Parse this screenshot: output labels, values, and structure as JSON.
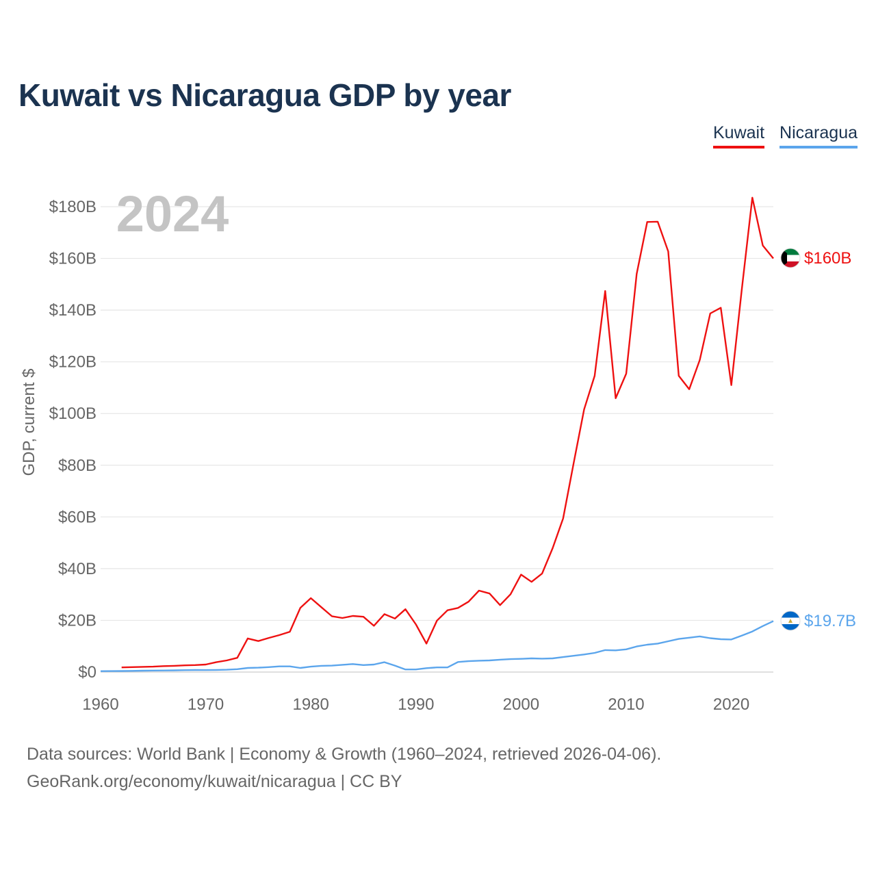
{
  "title": "Kuwait vs Nicaragua GDP by year",
  "legend": [
    "Kuwait",
    "Nicaragua"
  ],
  "source": {
    "line1": "Data sources: World Bank | Economy & Growth (1960–2024, retrieved 2026-04-06).",
    "line2": "GeoRank.org/economy/kuwait/nicaragua | CC BY"
  },
  "chart_data": {
    "type": "line",
    "title": "Kuwait vs Nicaragua GDP by year",
    "year_label": "2024",
    "xlabel": "",
    "ylabel": "GDP, current $",
    "xlim": [
      1960,
      2024
    ],
    "ylim": [
      0,
      180
    ],
    "x_ticks": [
      1960,
      1970,
      1980,
      1990,
      2000,
      2010,
      2020
    ],
    "x_tick_labels": [
      "1960",
      "1970",
      "1980",
      "1990",
      "2000",
      "2010",
      "2020"
    ],
    "y_ticks": [
      0,
      20,
      40,
      60,
      80,
      100,
      120,
      140,
      160,
      180
    ],
    "y_tick_labels": [
      "$0",
      "$20B",
      "$40B",
      "$60B",
      "$80B",
      "$100B",
      "$120B",
      "$140B",
      "$160B",
      "$180B"
    ],
    "grid": true,
    "legend_position": "top-right",
    "series": [
      {
        "name": "Kuwait",
        "color": "#ee1111",
        "end_label": "$160B",
        "flag": "kuwait-flag",
        "points": [
          [
            1962,
            1.8
          ],
          [
            1963,
            1.9
          ],
          [
            1964,
            2.0
          ],
          [
            1965,
            2.1
          ],
          [
            1966,
            2.3
          ],
          [
            1967,
            2.4
          ],
          [
            1968,
            2.6
          ],
          [
            1969,
            2.7
          ],
          [
            1970,
            2.9
          ],
          [
            1971,
            3.8
          ],
          [
            1972,
            4.5
          ],
          [
            1973,
            5.5
          ],
          [
            1974,
            13.0
          ],
          [
            1975,
            12.0
          ],
          [
            1976,
            13.2
          ],
          [
            1977,
            14.3
          ],
          [
            1978,
            15.6
          ],
          [
            1979,
            24.8
          ],
          [
            1980,
            28.6
          ],
          [
            1981,
            25.1
          ],
          [
            1982,
            21.6
          ],
          [
            1983,
            20.9
          ],
          [
            1984,
            21.7
          ],
          [
            1985,
            21.4
          ],
          [
            1986,
            17.9
          ],
          [
            1987,
            22.4
          ],
          [
            1988,
            20.7
          ],
          [
            1989,
            24.3
          ],
          [
            1990,
            18.4
          ],
          [
            1991,
            11.0
          ],
          [
            1992,
            19.9
          ],
          [
            1993,
            23.9
          ],
          [
            1994,
            24.8
          ],
          [
            1995,
            27.2
          ],
          [
            1996,
            31.5
          ],
          [
            1997,
            30.4
          ],
          [
            1998,
            25.9
          ],
          [
            1999,
            30.1
          ],
          [
            2000,
            37.7
          ],
          [
            2001,
            34.9
          ],
          [
            2002,
            38.1
          ],
          [
            2003,
            47.9
          ],
          [
            2004,
            59.4
          ],
          [
            2005,
            80.8
          ],
          [
            2006,
            101.6
          ],
          [
            2007,
            114.6
          ],
          [
            2008,
            147.4
          ],
          [
            2009,
            105.9
          ],
          [
            2010,
            115.4
          ],
          [
            2011,
            154.0
          ],
          [
            2012,
            174.1
          ],
          [
            2013,
            174.2
          ],
          [
            2014,
            162.7
          ],
          [
            2015,
            114.6
          ],
          [
            2016,
            109.4
          ],
          [
            2017,
            120.7
          ],
          [
            2018,
            138.7
          ],
          [
            2019,
            140.9
          ],
          [
            2020,
            111.0
          ],
          [
            2021,
            148.0
          ],
          [
            2022,
            183.5
          ],
          [
            2023,
            165.0
          ],
          [
            2024,
            160.0
          ]
        ]
      },
      {
        "name": "Nicaragua",
        "color": "#5ba5ec",
        "end_label": "$19.7B",
        "flag": "nicaragua-flag",
        "points": [
          [
            1960,
            0.35
          ],
          [
            1961,
            0.37
          ],
          [
            1962,
            0.41
          ],
          [
            1963,
            0.45
          ],
          [
            1964,
            0.52
          ],
          [
            1965,
            0.57
          ],
          [
            1966,
            0.62
          ],
          [
            1967,
            0.67
          ],
          [
            1968,
            0.73
          ],
          [
            1969,
            0.79
          ],
          [
            1970,
            0.78
          ],
          [
            1971,
            0.82
          ],
          [
            1972,
            0.9
          ],
          [
            1973,
            1.1
          ],
          [
            1974,
            1.6
          ],
          [
            1975,
            1.7
          ],
          [
            1976,
            1.9
          ],
          [
            1977,
            2.2
          ],
          [
            1978,
            2.2
          ],
          [
            1979,
            1.6
          ],
          [
            1980,
            2.1
          ],
          [
            1981,
            2.4
          ],
          [
            1982,
            2.5
          ],
          [
            1983,
            2.8
          ],
          [
            1984,
            3.1
          ],
          [
            1985,
            2.7
          ],
          [
            1986,
            2.9
          ],
          [
            1987,
            3.8
          ],
          [
            1988,
            2.5
          ],
          [
            1989,
            1.0
          ],
          [
            1990,
            1.0
          ],
          [
            1991,
            1.5
          ],
          [
            1992,
            1.8
          ],
          [
            1993,
            1.8
          ],
          [
            1994,
            3.9
          ],
          [
            1995,
            4.2
          ],
          [
            1996,
            4.4
          ],
          [
            1997,
            4.5
          ],
          [
            1998,
            4.8
          ],
          [
            1999,
            5.0
          ],
          [
            2000,
            5.1
          ],
          [
            2001,
            5.3
          ],
          [
            2002,
            5.2
          ],
          [
            2003,
            5.3
          ],
          [
            2004,
            5.8
          ],
          [
            2005,
            6.3
          ],
          [
            2006,
            6.8
          ],
          [
            2007,
            7.4
          ],
          [
            2008,
            8.5
          ],
          [
            2009,
            8.4
          ],
          [
            2010,
            8.8
          ],
          [
            2011,
            9.9
          ],
          [
            2012,
            10.6
          ],
          [
            2013,
            11.0
          ],
          [
            2014,
            11.9
          ],
          [
            2015,
            12.8
          ],
          [
            2016,
            13.3
          ],
          [
            2017,
            13.8
          ],
          [
            2018,
            13.1
          ],
          [
            2019,
            12.7
          ],
          [
            2020,
            12.6
          ],
          [
            2021,
            14.1
          ],
          [
            2022,
            15.7
          ],
          [
            2023,
            17.8
          ],
          [
            2024,
            19.7
          ]
        ]
      }
    ]
  }
}
